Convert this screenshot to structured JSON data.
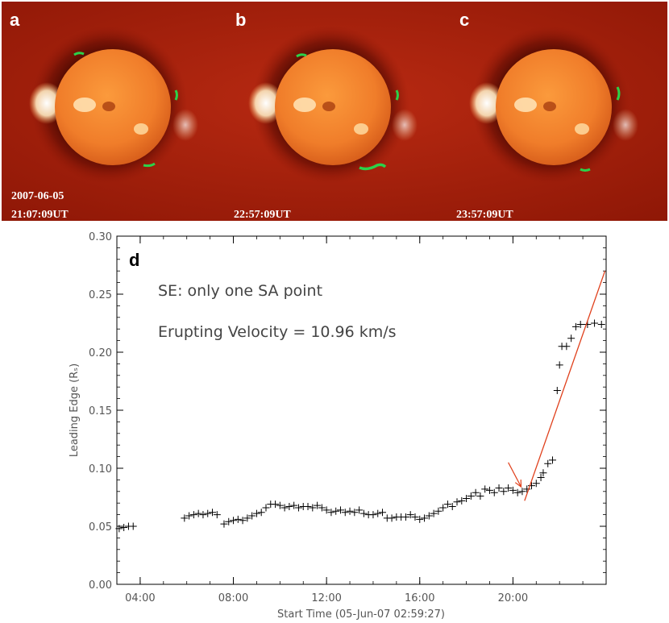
{
  "panels": [
    {
      "letter": "a",
      "date": "2007-06-05",
      "time": "21:07:09UT"
    },
    {
      "letter": "b",
      "date": "",
      "time": "22:57:09UT"
    },
    {
      "letter": "c",
      "date": "",
      "time": "23:57:09UT"
    }
  ],
  "colors": {
    "image_background": "#a81e0a",
    "solar_disk": "#f07d2a",
    "prominence": "#2bd24a",
    "fit_line": "#e0401c",
    "data_marker": "#000000"
  },
  "chart_data": {
    "type": "scatter",
    "panel_letter": "d",
    "title": "",
    "annotations": [
      "SE: only one SA point",
      "Erupting Velocity = 10.96 km/s"
    ],
    "xlabel": "Start Time (05-Jun-07 02:59:27)",
    "ylabel": "Leading Edge (Rₛ)",
    "xlim": [
      3.0,
      24.0
    ],
    "ylim": [
      0.0,
      0.3
    ],
    "x_tick_values": [
      4,
      8,
      12,
      16,
      20
    ],
    "x_tick_labels": [
      "04:00",
      "08:00",
      "12:00",
      "16:00",
      "20:00"
    ],
    "y_tick_values": [
      0.0,
      0.05,
      0.1,
      0.15,
      0.2,
      0.25,
      0.3
    ],
    "y_tick_labels": [
      "0.00",
      "0.05",
      "0.10",
      "0.15",
      "0.20",
      "0.25",
      "0.30"
    ],
    "series": [
      {
        "name": "leading edge",
        "marker": "+",
        "points": [
          [
            3.1,
            0.048
          ],
          [
            3.3,
            0.049
          ],
          [
            3.5,
            0.05
          ],
          [
            3.7,
            0.05
          ],
          [
            5.9,
            0.057
          ],
          [
            6.1,
            0.059
          ],
          [
            6.3,
            0.06
          ],
          [
            6.5,
            0.061
          ],
          [
            6.7,
            0.06
          ],
          [
            6.9,
            0.061
          ],
          [
            7.1,
            0.062
          ],
          [
            7.3,
            0.06
          ],
          [
            7.6,
            0.052
          ],
          [
            7.8,
            0.054
          ],
          [
            8.0,
            0.055
          ],
          [
            8.2,
            0.056
          ],
          [
            8.4,
            0.055
          ],
          [
            8.6,
            0.057
          ],
          [
            8.8,
            0.059
          ],
          [
            9.0,
            0.061
          ],
          [
            9.2,
            0.062
          ],
          [
            9.4,
            0.066
          ],
          [
            9.6,
            0.069
          ],
          [
            9.8,
            0.069
          ],
          [
            10.0,
            0.068
          ],
          [
            10.2,
            0.066
          ],
          [
            10.4,
            0.067
          ],
          [
            10.6,
            0.068
          ],
          [
            10.8,
            0.066
          ],
          [
            11.0,
            0.067
          ],
          [
            11.2,
            0.067
          ],
          [
            11.4,
            0.066
          ],
          [
            11.6,
            0.068
          ],
          [
            11.8,
            0.066
          ],
          [
            12.0,
            0.064
          ],
          [
            12.2,
            0.062
          ],
          [
            12.4,
            0.063
          ],
          [
            12.6,
            0.064
          ],
          [
            12.8,
            0.062
          ],
          [
            13.0,
            0.063
          ],
          [
            13.2,
            0.062
          ],
          [
            13.4,
            0.064
          ],
          [
            13.6,
            0.061
          ],
          [
            13.8,
            0.06
          ],
          [
            14.0,
            0.06
          ],
          [
            14.2,
            0.061
          ],
          [
            14.4,
            0.062
          ],
          [
            14.6,
            0.057
          ],
          [
            14.8,
            0.057
          ],
          [
            15.0,
            0.058
          ],
          [
            15.2,
            0.058
          ],
          [
            15.4,
            0.058
          ],
          [
            15.6,
            0.06
          ],
          [
            15.8,
            0.058
          ],
          [
            16.0,
            0.056
          ],
          [
            16.2,
            0.057
          ],
          [
            16.4,
            0.059
          ],
          [
            16.6,
            0.061
          ],
          [
            16.8,
            0.063
          ],
          [
            17.0,
            0.066
          ],
          [
            17.2,
            0.069
          ],
          [
            17.4,
            0.067
          ],
          [
            17.6,
            0.071
          ],
          [
            17.8,
            0.072
          ],
          [
            18.0,
            0.074
          ],
          [
            18.2,
            0.076
          ],
          [
            18.4,
            0.079
          ],
          [
            18.6,
            0.076
          ],
          [
            18.8,
            0.082
          ],
          [
            19.0,
            0.081
          ],
          [
            19.2,
            0.079
          ],
          [
            19.4,
            0.083
          ],
          [
            19.6,
            0.08
          ],
          [
            19.8,
            0.083
          ],
          [
            20.0,
            0.081
          ],
          [
            20.2,
            0.079
          ],
          [
            20.4,
            0.08
          ],
          [
            20.6,
            0.082
          ],
          [
            20.8,
            0.085
          ],
          [
            21.0,
            0.087
          ],
          [
            21.2,
            0.092
          ],
          [
            21.3,
            0.096
          ],
          [
            21.5,
            0.104
          ],
          [
            21.7,
            0.107
          ],
          [
            21.9,
            0.167
          ],
          [
            22.0,
            0.189
          ],
          [
            22.1,
            0.205
          ],
          [
            22.3,
            0.205
          ],
          [
            22.5,
            0.212
          ],
          [
            22.7,
            0.222
          ],
          [
            22.9,
            0.224
          ],
          [
            23.2,
            0.224
          ],
          [
            23.5,
            0.225
          ],
          [
            23.8,
            0.224
          ]
        ]
      }
    ],
    "fit_line": {
      "name": "erupting velocity fit",
      "x": [
        20.5,
        23.95
      ],
      "y": [
        0.072,
        0.27
      ]
    },
    "arrow": {
      "from": [
        19.8,
        0.105
      ],
      "to": [
        20.35,
        0.084
      ]
    }
  }
}
